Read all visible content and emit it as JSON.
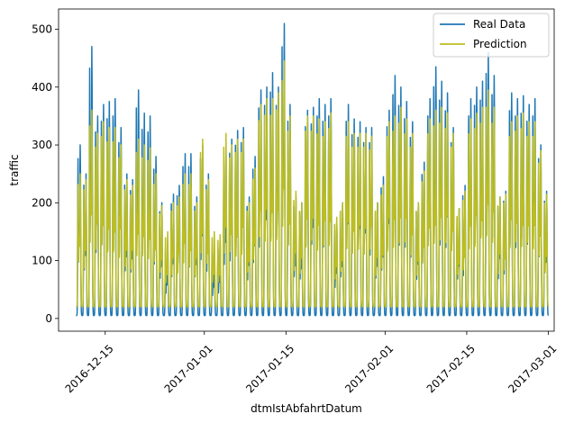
{
  "chart_data": {
    "type": "line",
    "title": "",
    "xlabel": "dtmIstAbfahrtDatum",
    "ylabel": "traffic",
    "x_range": [
      "2016-12-07",
      "2017-03-02"
    ],
    "ylim": [
      -22,
      535
    ],
    "x_ticks": [
      "2016-12-15",
      "2017-01-01",
      "2017-01-15",
      "2017-02-01",
      "2017-02-15",
      "2017-03-01"
    ],
    "y_ticks": [
      0,
      100,
      200,
      300,
      400,
      500
    ],
    "grid": false,
    "legend_position": "top-right",
    "x_start": "2016-12-10",
    "x_end": "2017-03-01",
    "sampling": "hourly",
    "series": [
      {
        "name": "Real Data",
        "color": "#1f77b4",
        "daily_peaks": [
          300,
          250,
          470,
          350,
          370,
          375,
          380,
          330,
          250,
          240,
          395,
          355,
          350,
          280,
          200,
          130,
          215,
          230,
          285,
          285,
          210,
          300,
          250,
          120,
          130,
          290,
          310,
          325,
          330,
          210,
          280,
          395,
          400,
          425,
          400,
          510,
          370,
          210,
          200,
          360,
          365,
          380,
          370,
          380,
          165,
          200,
          370,
          345,
          340,
          330,
          330,
          200,
          245,
          360,
          420,
          400,
          375,
          340,
          200,
          270,
          380,
          435,
          410,
          390,
          330,
          190,
          230,
          380,
          400,
          410,
          460,
          420,
          210,
          220,
          390,
          380,
          385,
          370,
          380,
          300,
          220,
          410
        ],
        "night_min": 5
      },
      {
        "name": "Prediction",
        "color": "#bcbd22",
        "daily_peaks": [
          250,
          240,
          360,
          320,
          340,
          330,
          330,
          300,
          240,
          230,
          310,
          300,
          295,
          250,
          195,
          150,
          200,
          210,
          250,
          250,
          200,
          310,
          240,
          150,
          145,
          320,
          300,
          310,
          310,
          200,
          260,
          370,
          380,
          380,
          390,
          445,
          350,
          220,
          200,
          350,
          350,
          345,
          340,
          355,
          175,
          200,
          340,
          320,
          320,
          320,
          315,
          200,
          230,
          340,
          350,
          365,
          345,
          320,
          200,
          255,
          345,
          360,
          365,
          355,
          320,
          190,
          220,
          345,
          355,
          365,
          395,
          365,
          210,
          215,
          340,
          350,
          355,
          340,
          340,
          290,
          215,
          320
        ],
        "night_min": 20
      }
    ]
  }
}
